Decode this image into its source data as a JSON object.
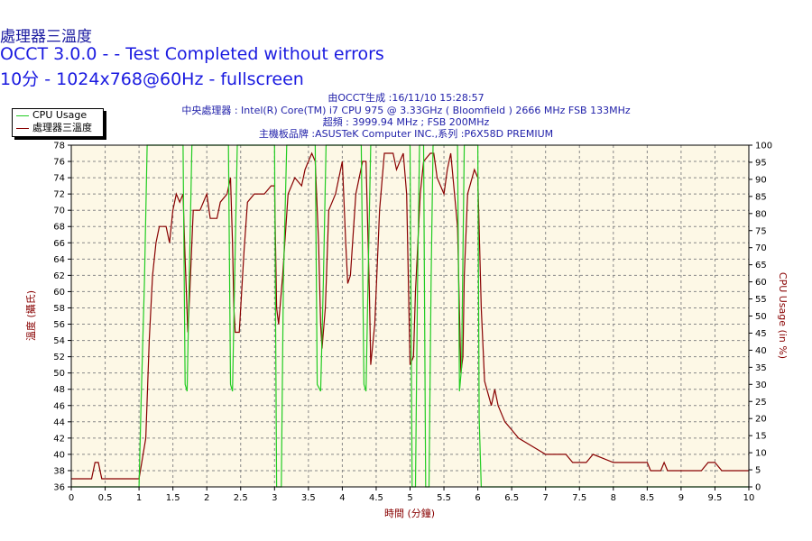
{
  "titles": {
    "main": "處理器三溫度",
    "sub1": "OCCT 3.0.0 -  - Test Completed without errors",
    "sub2": "10分 - 1024x768@60Hz - fullscreen"
  },
  "info": [
    "由OCCT生成 :16/11/10 15:28:57",
    "中央處理器 : Intel(R) Core(TM) i7 CPU 975 @ 3.33GHz ( Bloomfield ) 2666 MHz FSB 133MHz",
    "超頻 : 3999.94 MHz ; FSB 200MHz",
    "主機板品牌 :ASUSTeK Computer INC.,系列 :P6X58D PREMIUM"
  ],
  "legend": [
    {
      "label": "CPU Usage",
      "color": "#22cc22"
    },
    {
      "label": "處理器三溫度",
      "color": "#880000"
    }
  ],
  "colors": {
    "plot_bg": "#fdf8e6",
    "grid": "#888888",
    "temp": "#880000",
    "cpu": "#22cc22",
    "title": "#1a1ae0",
    "axis_label": "#880000"
  },
  "chart_data": {
    "type": "line",
    "xlabel": "時間 (分鐘)",
    "ylabel_left": "溫度 (攝氏)",
    "ylabel_right": "CPU Usage (in %)",
    "xlim": [
      0,
      10
    ],
    "ylim_left": [
      36,
      78
    ],
    "ylim_right": [
      0,
      100
    ],
    "x_ticks": [
      "0",
      "0.5",
      "1",
      "1.5",
      "2",
      "2.5",
      "3",
      "3.5",
      "4",
      "4.5",
      "5",
      "5.5",
      "6",
      "6.5",
      "7",
      "7.5",
      "8",
      "8.5",
      "9",
      "9.5",
      "10"
    ],
    "y_left_ticks": [
      "36",
      "38",
      "40",
      "42",
      "44",
      "46",
      "48",
      "50",
      "52",
      "54",
      "56",
      "58",
      "60",
      "62",
      "64",
      "66",
      "68",
      "70",
      "72",
      "74",
      "76",
      "78"
    ],
    "y_right_ticks": [
      "0",
      "5",
      "10",
      "15",
      "20",
      "25",
      "30",
      "35",
      "40",
      "45",
      "50",
      "55",
      "60",
      "65",
      "70",
      "75",
      "80",
      "85",
      "90",
      "95",
      "100"
    ],
    "grid": true,
    "legend_position": "top-left",
    "series": [
      {
        "name": "處理器三溫度",
        "axis": "left",
        "color": "#880000",
        "points": [
          [
            0,
            37
          ],
          [
            0.3,
            37
          ],
          [
            0.35,
            39
          ],
          [
            0.4,
            39
          ],
          [
            0.45,
            37
          ],
          [
            1.0,
            37
          ],
          [
            1.02,
            38
          ],
          [
            1.1,
            42
          ],
          [
            1.15,
            54
          ],
          [
            1.2,
            62
          ],
          [
            1.25,
            66
          ],
          [
            1.3,
            68
          ],
          [
            1.4,
            68
          ],
          [
            1.45,
            66
          ],
          [
            1.5,
            70
          ],
          [
            1.55,
            72
          ],
          [
            1.6,
            71
          ],
          [
            1.65,
            72
          ],
          [
            1.68,
            64
          ],
          [
            1.72,
            55
          ],
          [
            1.75,
            60
          ],
          [
            1.8,
            70
          ],
          [
            1.9,
            70
          ],
          [
            2.0,
            72
          ],
          [
            2.05,
            69
          ],
          [
            2.15,
            69
          ],
          [
            2.2,
            71
          ],
          [
            2.3,
            72
          ],
          [
            2.35,
            74
          ],
          [
            2.38,
            66
          ],
          [
            2.4,
            58
          ],
          [
            2.42,
            55
          ],
          [
            2.48,
            55
          ],
          [
            2.55,
            65
          ],
          [
            2.6,
            71
          ],
          [
            2.7,
            72
          ],
          [
            2.85,
            72
          ],
          [
            2.95,
            73
          ],
          [
            3.0,
            73
          ],
          [
            3.03,
            58
          ],
          [
            3.06,
            56
          ],
          [
            3.12,
            62
          ],
          [
            3.2,
            72
          ],
          [
            3.3,
            74
          ],
          [
            3.4,
            73
          ],
          [
            3.45,
            75
          ],
          [
            3.5,
            76
          ],
          [
            3.55,
            77
          ],
          [
            3.6,
            76
          ],
          [
            3.65,
            66
          ],
          [
            3.68,
            56
          ],
          [
            3.7,
            53
          ],
          [
            3.75,
            58
          ],
          [
            3.8,
            70
          ],
          [
            3.9,
            72
          ],
          [
            4.0,
            76
          ],
          [
            4.05,
            66
          ],
          [
            4.08,
            61
          ],
          [
            4.12,
            62
          ],
          [
            4.2,
            72
          ],
          [
            4.3,
            76
          ],
          [
            4.35,
            76
          ],
          [
            4.4,
            60
          ],
          [
            4.42,
            51
          ],
          [
            4.48,
            56
          ],
          [
            4.55,
            70
          ],
          [
            4.62,
            77
          ],
          [
            4.75,
            77
          ],
          [
            4.8,
            75
          ],
          [
            4.85,
            76
          ],
          [
            4.9,
            77
          ],
          [
            4.95,
            72
          ],
          [
            5.0,
            51
          ],
          [
            5.05,
            52
          ],
          [
            5.08,
            60
          ],
          [
            5.15,
            72
          ],
          [
            5.2,
            76
          ],
          [
            5.3,
            77
          ],
          [
            5.35,
            77
          ],
          [
            5.4,
            74
          ],
          [
            5.5,
            72
          ],
          [
            5.55,
            75
          ],
          [
            5.6,
            77
          ],
          [
            5.7,
            68
          ],
          [
            5.75,
            50
          ],
          [
            5.78,
            52
          ],
          [
            5.8,
            62
          ],
          [
            5.85,
            72
          ],
          [
            5.95,
            75
          ],
          [
            6.0,
            74
          ],
          [
            6.05,
            58
          ],
          [
            6.1,
            49
          ],
          [
            6.2,
            46
          ],
          [
            6.25,
            48
          ],
          [
            6.3,
            46
          ],
          [
            6.4,
            44
          ],
          [
            6.5,
            43
          ],
          [
            6.6,
            42
          ],
          [
            6.8,
            41
          ],
          [
            7.0,
            40
          ],
          [
            7.3,
            40
          ],
          [
            7.4,
            39
          ],
          [
            7.6,
            39
          ],
          [
            7.7,
            40
          ],
          [
            8.0,
            39
          ],
          [
            8.5,
            39
          ],
          [
            8.55,
            38
          ],
          [
            8.7,
            38
          ],
          [
            8.75,
            39
          ],
          [
            8.8,
            38
          ],
          [
            9.0,
            38
          ],
          [
            9.3,
            38
          ],
          [
            9.4,
            39
          ],
          [
            9.5,
            39
          ],
          [
            9.6,
            38
          ],
          [
            10.0,
            38
          ]
        ]
      },
      {
        "name": "CPU Usage",
        "axis": "right",
        "color": "#22cc22",
        "points": [
          [
            0,
            0
          ],
          [
            1.0,
            0
          ],
          [
            1.03,
            25
          ],
          [
            1.08,
            60
          ],
          [
            1.12,
            100
          ],
          [
            1.65,
            100
          ],
          [
            1.68,
            30
          ],
          [
            1.71,
            28
          ],
          [
            1.74,
            60
          ],
          [
            1.78,
            100
          ],
          [
            2.32,
            100
          ],
          [
            2.35,
            30
          ],
          [
            2.38,
            28
          ],
          [
            2.41,
            60
          ],
          [
            2.45,
            100
          ],
          [
            3.0,
            100
          ],
          [
            3.03,
            0
          ],
          [
            3.1,
            0
          ],
          [
            3.13,
            60
          ],
          [
            3.18,
            100
          ],
          [
            3.6,
            100
          ],
          [
            3.63,
            30
          ],
          [
            3.68,
            28
          ],
          [
            3.72,
            60
          ],
          [
            3.76,
            100
          ],
          [
            4.28,
            100
          ],
          [
            4.32,
            30
          ],
          [
            4.35,
            28
          ],
          [
            4.38,
            60
          ],
          [
            4.42,
            100
          ],
          [
            5.0,
            100
          ],
          [
            5.03,
            0
          ],
          [
            5.08,
            0
          ],
          [
            5.11,
            60
          ],
          [
            5.14,
            100
          ],
          [
            5.2,
            100
          ],
          [
            5.23,
            0
          ],
          [
            5.28,
            0
          ],
          [
            5.31,
            60
          ],
          [
            5.34,
            100
          ],
          [
            5.7,
            100
          ],
          [
            5.73,
            28
          ],
          [
            5.76,
            35
          ],
          [
            5.8,
            100
          ],
          [
            6.0,
            100
          ],
          [
            6.02,
            20
          ],
          [
            6.05,
            0
          ],
          [
            10.0,
            0
          ]
        ]
      }
    ]
  }
}
